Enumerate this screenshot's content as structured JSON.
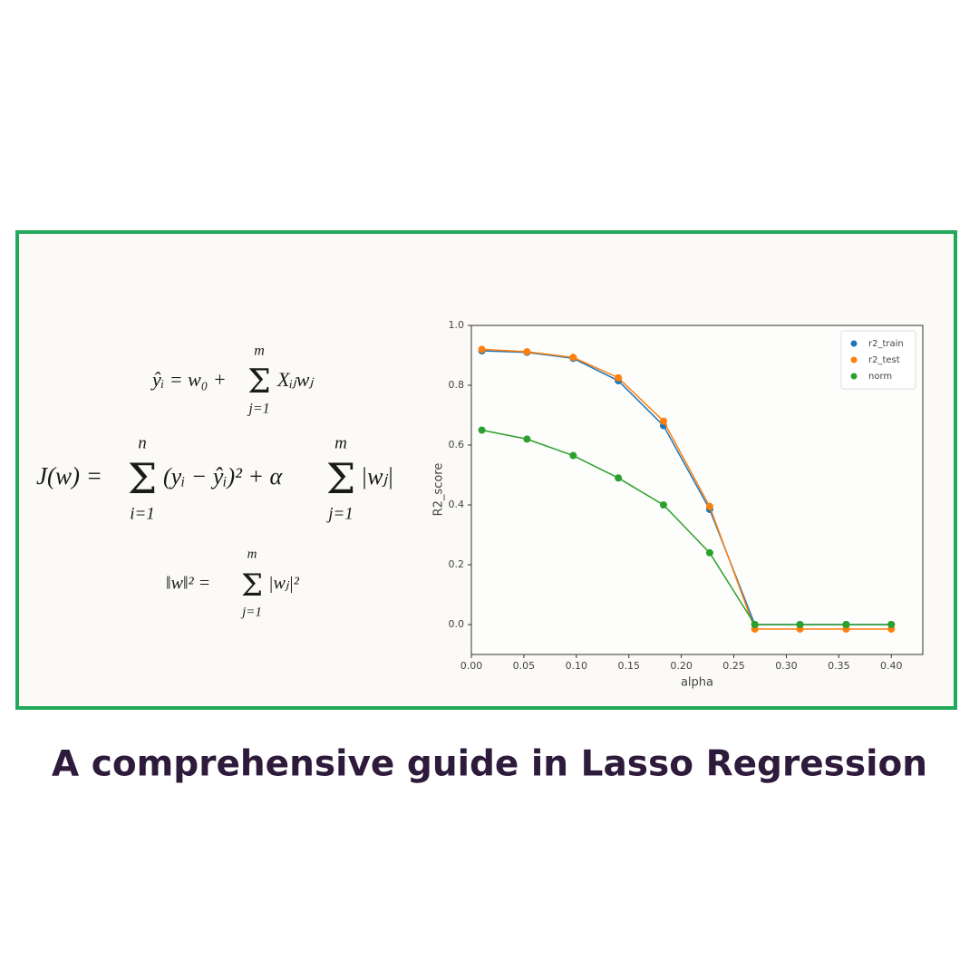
{
  "formulas": [
    {
      "parts": [
        "ŷᵢ = w₀ +",
        "Σ",
        "m",
        "j=1",
        "Xᵢⱼwⱼ"
      ]
    },
    {
      "parts": [
        "J(w) =",
        "Σ",
        "n",
        "i=1",
        "(yᵢ − ŷᵢ)² + α",
        "Σ",
        "m",
        "j=1",
        "|wⱼ|"
      ]
    },
    {
      "parts": [
        "‖w‖² =",
        "Σ",
        "m",
        "j=1",
        "|wⱼ|²"
      ]
    }
  ],
  "caption": "A comprehensive guide in Lasso Regression",
  "chart_data": {
    "type": "line",
    "x_label": "alpha",
    "y_label": "R2_score",
    "x": [
      0.01,
      0.053,
      0.097,
      0.14,
      0.183,
      0.227,
      0.27,
      0.313,
      0.357,
      0.4
    ],
    "series": [
      {
        "name": "r2_train",
        "color": "#1f77b4",
        "values": [
          0.915,
          0.91,
          0.89,
          0.815,
          0.665,
          0.385,
          0,
          0,
          0,
          0
        ]
      },
      {
        "name": "r2_test",
        "color": "#ff7f0e",
        "values": [
          0.92,
          0.912,
          0.893,
          0.825,
          0.68,
          0.395,
          -0.015,
          -0.015,
          -0.015,
          -0.015
        ]
      },
      {
        "name": "norm",
        "color": "#2ca02c",
        "values": [
          0.65,
          0.62,
          0.565,
          0.49,
          0.4,
          0.24,
          0,
          0,
          0,
          0
        ]
      }
    ],
    "xlim": [
      0,
      0.43
    ],
    "xticks": [
      {
        "value": 0,
        "label": "0.00"
      },
      0.05,
      {
        "value": 0.1,
        "label": "0.10"
      },
      0.15,
      {
        "value": 0.2,
        "label": "0.20"
      },
      0.25,
      {
        "value": 0.3,
        "label": "0.30"
      },
      0.35,
      {
        "value": 0.4,
        "label": "0.40"
      }
    ],
    "ylim": [
      -0.1,
      1.0
    ],
    "yticks": [
      {
        "value": 0,
        "label": "0.0"
      },
      0.2,
      0.4,
      0.6,
      0.8,
      {
        "value": 1,
        "label": "1.0"
      }
    ],
    "grid": false,
    "legend": "upper right"
  }
}
